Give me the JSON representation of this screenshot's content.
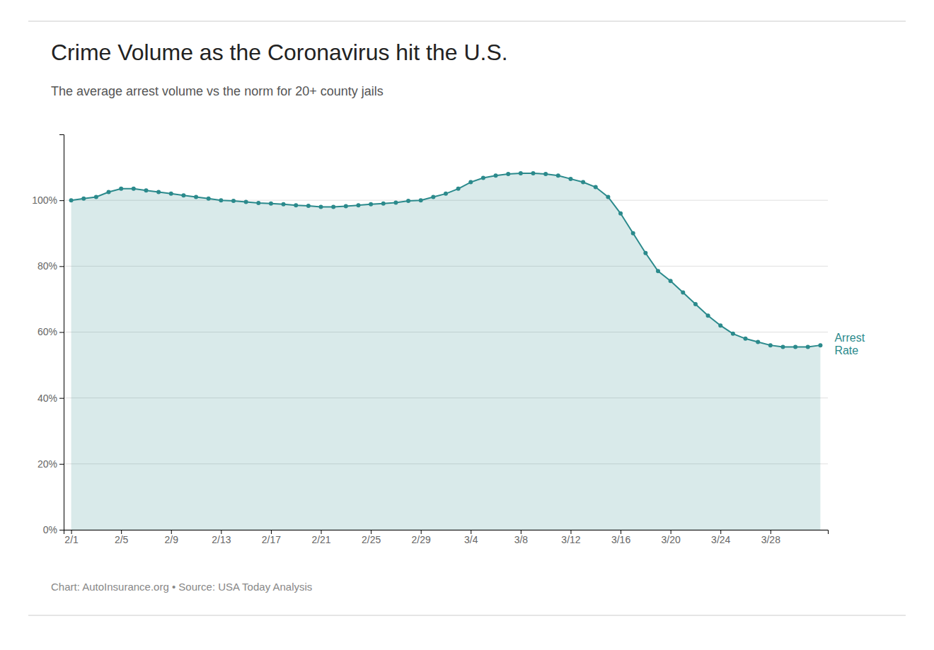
{
  "chart_data": {
    "type": "area",
    "title": "Crime Volume as the Coronavirus hit the U.S.",
    "subtitle": "The average arrest volume vs the norm for 20+ county jails",
    "footer": "Chart: AutoInsurance.org • Source: USA Today Analysis",
    "categories": [
      "2/1",
      null,
      null,
      null,
      "2/5",
      null,
      null,
      null,
      "2/9",
      null,
      null,
      null,
      "2/13",
      null,
      null,
      null,
      "2/17",
      null,
      null,
      null,
      "2/21",
      null,
      null,
      null,
      "2/25",
      null,
      null,
      null,
      "2/29",
      null,
      null,
      null,
      "3/4",
      null,
      null,
      null,
      "3/8",
      null,
      null,
      null,
      "3/12",
      null,
      null,
      null,
      "3/16",
      null,
      null,
      null,
      "3/20",
      null,
      null,
      null,
      "3/24",
      null,
      null,
      null,
      "3/28",
      null,
      null,
      null,
      null
    ],
    "series": [
      {
        "name": "Arrest\nRate",
        "color": "#2b8a8c",
        "marker": "circle",
        "values": [
          1.0,
          1.005,
          1.01,
          1.025,
          1.035,
          1.035,
          1.03,
          1.025,
          1.02,
          1.015,
          1.01,
          1.005,
          1.0,
          0.998,
          0.995,
          0.992,
          0.99,
          0.988,
          0.985,
          0.983,
          0.98,
          0.98,
          0.982,
          0.985,
          0.988,
          0.99,
          0.993,
          0.998,
          1.0,
          1.01,
          1.02,
          1.035,
          1.055,
          1.068,
          1.075,
          1.08,
          1.082,
          1.082,
          1.08,
          1.075,
          1.065,
          1.055,
          1.04,
          1.01,
          0.96,
          0.9,
          0.84,
          0.785,
          0.755,
          0.72,
          0.685,
          0.65,
          0.62,
          0.595,
          0.58,
          0.57,
          0.56,
          0.555,
          0.555,
          0.555,
          0.56
        ]
      }
    ],
    "ylim": [
      0.0,
      1.2
    ],
    "yticks": [
      {
        "value": 0.0,
        "label": "0%"
      },
      {
        "value": 0.2,
        "label": "20%"
      },
      {
        "value": 0.4,
        "label": "40%"
      },
      {
        "value": 0.6,
        "label": "60%"
      },
      {
        "value": 0.8,
        "label": "80%"
      },
      {
        "value": 1.0,
        "label": "100%"
      }
    ],
    "grid": true,
    "legend": false
  }
}
